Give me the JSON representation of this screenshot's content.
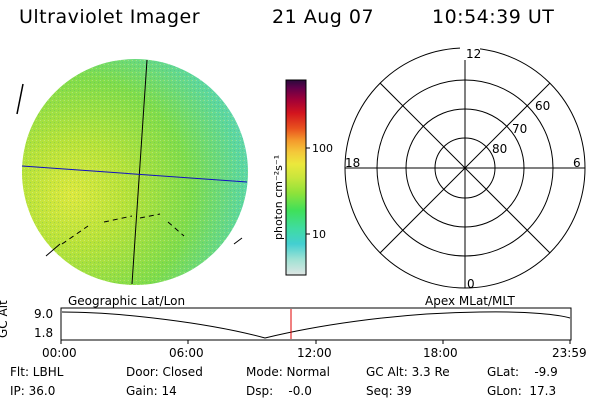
{
  "header": {
    "instrument": "Ultraviolet Imager",
    "date": "21 Aug 07",
    "time": "10:54:39 UT"
  },
  "colorbar": {
    "unit_label": "photon cm⁻²s⁻¹",
    "ticks": [
      {
        "label": "100",
        "value": 100
      },
      {
        "label": "10",
        "value": 10
      }
    ],
    "scale": "log",
    "colors": [
      "#dfe6e4",
      "#9fe2d4",
      "#43cfd1",
      "#3fdca0",
      "#3fe05a",
      "#8fe23a",
      "#c9e63c",
      "#ece83c",
      "#f4c83a",
      "#f49a2c",
      "#e9531e",
      "#d3141e",
      "#a00038",
      "#60004a",
      "#2a0a3c"
    ]
  },
  "polar_plot": {
    "ring_labels": [
      "60",
      "70",
      "80"
    ],
    "clock_labels": {
      "top": "12",
      "left": "18",
      "right": "6",
      "bottom": "0"
    }
  },
  "timeline": {
    "left_title": "Geographic Lat/Lon",
    "right_title": "Apex MLat/MLT",
    "ylabel": "GC Alt",
    "y_ticks": [
      "9.0",
      "1.8"
    ],
    "x_ticks": [
      "00:00",
      "06:00",
      "12:00",
      "18:00",
      "23:59"
    ],
    "current_time_marker": "10:54:39",
    "colors": {
      "line": "#000000",
      "marker": "#e00000"
    }
  },
  "status": {
    "filter": "Flt: LBHL",
    "ip": "IP: 36.0",
    "door": "Door: Closed",
    "gain": "Gain: 14",
    "mode": "Mode: Normal",
    "dsp": "Dsp:    -0.0",
    "gc_alt": "GC Alt: 3.3 Re",
    "seq": "Seq: 39",
    "glat": "GLat:    -9.9",
    "glon": "GLon:  17.3"
  }
}
